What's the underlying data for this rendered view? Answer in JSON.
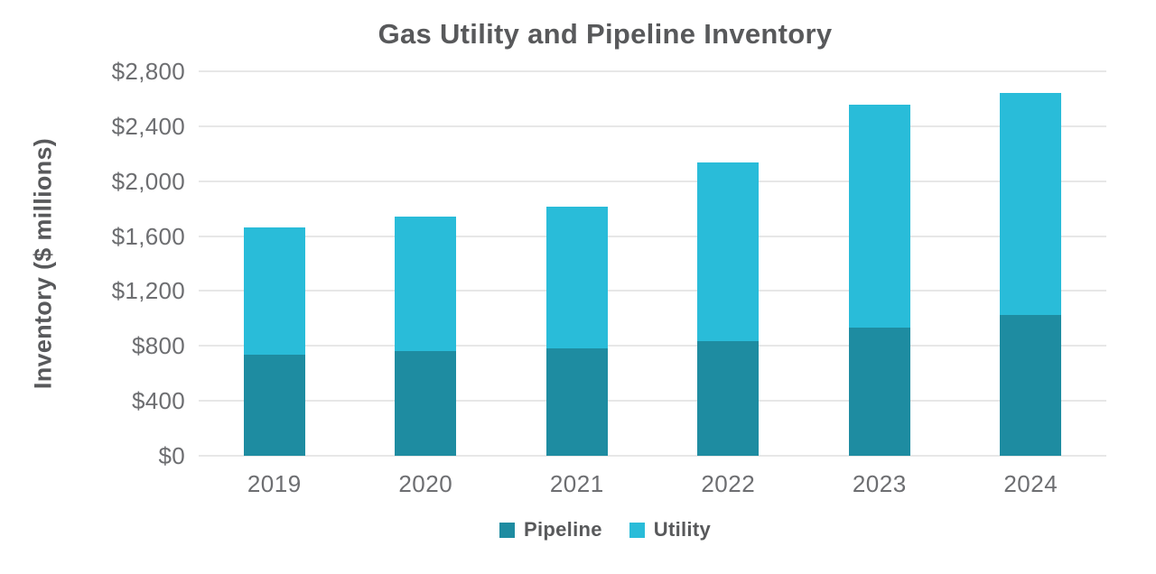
{
  "chart_data": {
    "type": "bar",
    "stacked": true,
    "title": "Gas Utility and Pipeline Inventory",
    "ylabel": "Inventory ($ millions)",
    "xlabel": "",
    "categories": [
      "2019",
      "2020",
      "2021",
      "2022",
      "2023",
      "2024"
    ],
    "series": [
      {
        "name": "Pipeline",
        "color": "#1e8ca1",
        "values": [
          735,
          760,
          780,
          835,
          935,
          1025
        ]
      },
      {
        "name": "Utility",
        "color": "#29bcd9",
        "values": [
          925,
          985,
          1035,
          1300,
          1620,
          1620
        ]
      }
    ],
    "stack_totals": [
      1660,
      1745,
      1815,
      2135,
      2555,
      2645
    ],
    "ylim": [
      0,
      2800
    ],
    "ytick_step": 400,
    "yticklabels": [
      "$0",
      "$400",
      "$800",
      "$1,200",
      "$1,600",
      "$2,000",
      "$2,400",
      "$2,800"
    ],
    "grid": true,
    "legend_position": "bottom",
    "colors": {
      "title_text": "#58595b",
      "tick_text": "#6d6e71",
      "gridline": "#e7e7e7",
      "background": "#ffffff"
    }
  }
}
